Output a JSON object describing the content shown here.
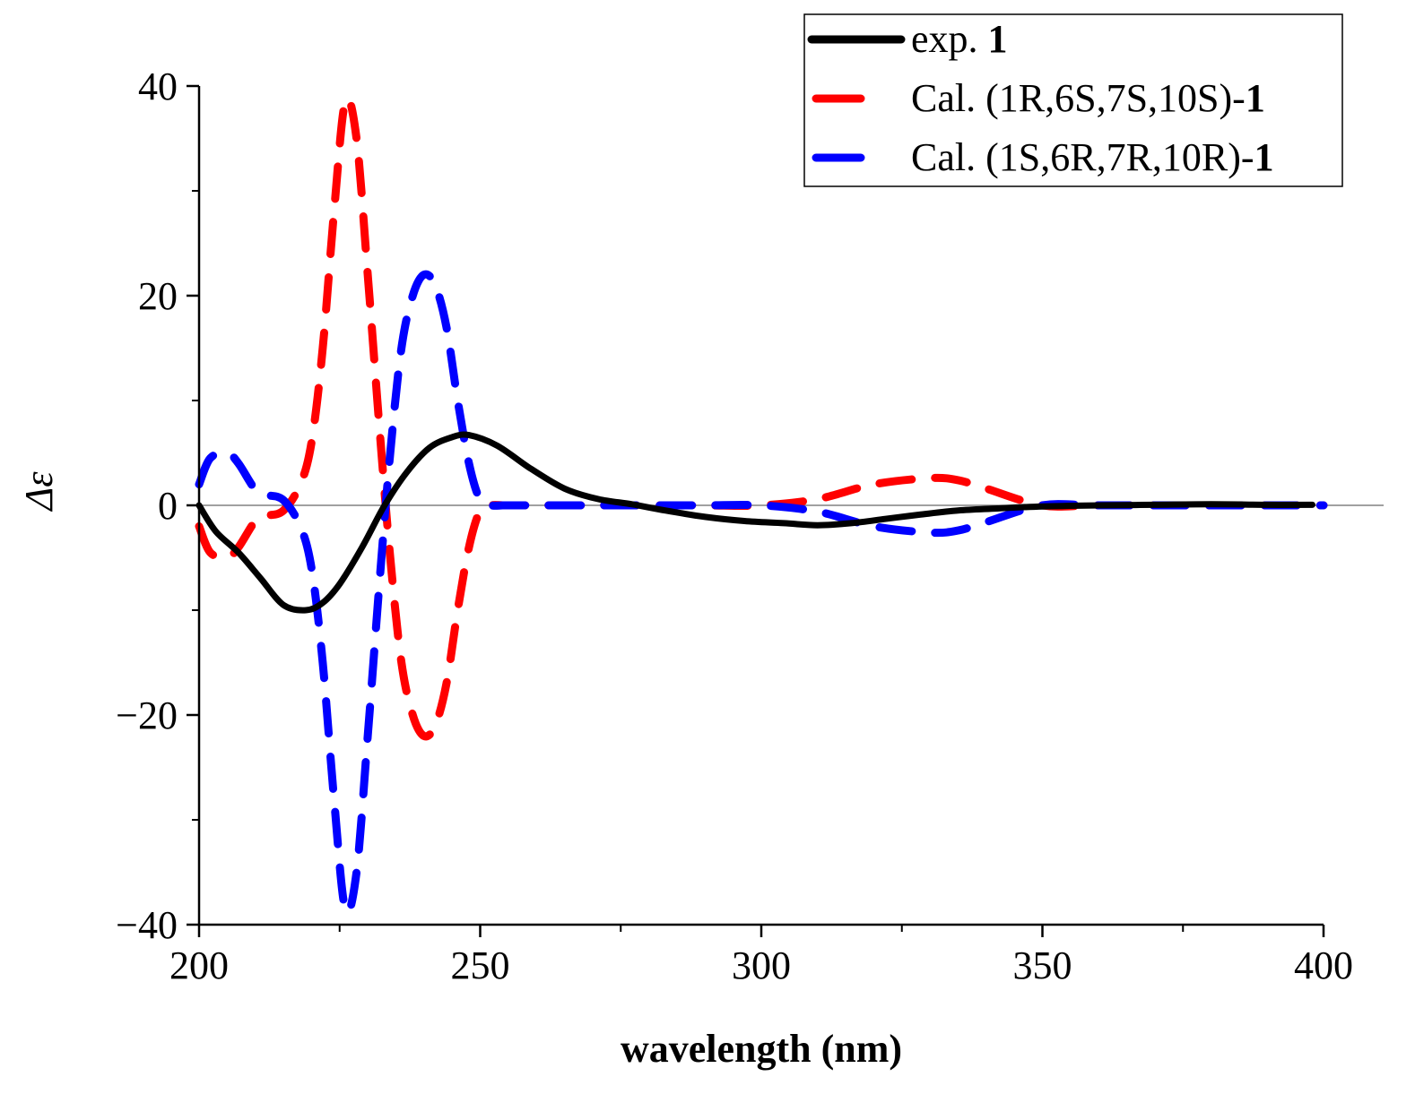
{
  "chart_data": {
    "type": "line",
    "title": "",
    "xlabel": "wavelength (nm)",
    "ylabel": "Δε",
    "xlim": [
      200,
      400
    ],
    "ylim": [
      -40,
      40
    ],
    "x_ticks": [
      200,
      250,
      300,
      350,
      400
    ],
    "x_tick_labels": [
      "200",
      "250",
      "300",
      "350",
      "400"
    ],
    "y_ticks": [
      -40,
      -20,
      0,
      20,
      40
    ],
    "y_tick_labels": [
      "−40",
      "−20",
      "0",
      "20",
      "40"
    ],
    "legend_position": "top-right",
    "series": [
      {
        "name": "exp. 1",
        "label_prefix": "exp. ",
        "label_bold": "1",
        "color": "#000000",
        "style": "solid",
        "x": [
          200,
          203,
          207,
          211,
          215,
          219,
          222,
          225,
          229,
          233,
          237,
          241,
          245,
          248,
          253,
          259,
          265,
          271,
          277,
          283,
          290,
          297,
          304,
          310,
          316,
          322,
          328,
          335,
          342,
          350,
          360,
          370,
          380,
          390,
          398
        ],
        "y": [
          0,
          -2.5,
          -4.5,
          -7,
          -9.5,
          -10,
          -9.3,
          -7.5,
          -4,
          0,
          3.2,
          5.5,
          6.5,
          6.7,
          5.7,
          3.5,
          1.6,
          0.6,
          0.1,
          -0.5,
          -1.1,
          -1.5,
          -1.7,
          -1.9,
          -1.7,
          -1.3,
          -0.9,
          -0.5,
          -0.3,
          -0.1,
          0,
          0.05,
          0.1,
          0.05,
          0.05
        ]
      },
      {
        "name": "Cal. (1R,6S,7S,10S)-1",
        "label_prefix": "Cal. (1R,6S,7S,10S)-",
        "label_bold": "1",
        "color": "#ff0000",
        "style": "dashed",
        "x": [
          200,
          202,
          205,
          207,
          210,
          212,
          215,
          218,
          220,
          222,
          224,
          226,
          228,
          230,
          232,
          234,
          236,
          238,
          240,
          242,
          244,
          246,
          248,
          250,
          252,
          254,
          256,
          260,
          270,
          280,
          290,
          300,
          310,
          320,
          330,
          335,
          340,
          350,
          360,
          380,
          400
        ],
        "y": [
          -2,
          -4.5,
          -5,
          -4,
          -1.5,
          -1,
          -0.5,
          2,
          6,
          15,
          28,
          38.5,
          35,
          22,
          8,
          -5,
          -15,
          -20,
          -22,
          -21,
          -17,
          -10,
          -4,
          -0.5,
          0,
          0,
          0,
          0,
          0,
          0,
          0,
          0,
          0.6,
          2,
          2.6,
          2.4,
          1.6,
          0,
          0,
          0,
          0
        ]
      },
      {
        "name": "Cal. (1S,6R,7R,10R)-1",
        "label_prefix": "Cal. (1S,6R,7R,10R)-",
        "label_bold": "1",
        "color": "#0000ff",
        "style": "dashed",
        "x": [
          200,
          202,
          205,
          207,
          210,
          212,
          215,
          218,
          220,
          222,
          224,
          226,
          228,
          230,
          232,
          234,
          236,
          238,
          240,
          242,
          244,
          246,
          248,
          250,
          252,
          254,
          256,
          260,
          270,
          280,
          290,
          300,
          310,
          320,
          330,
          335,
          340,
          350,
          360,
          380,
          400
        ],
        "y": [
          2,
          4.5,
          5,
          4,
          1.5,
          1,
          0.5,
          -2,
          -6,
          -15,
          -28,
          -38.5,
          -35,
          -22,
          -8,
          5,
          15,
          20,
          22,
          21,
          17,
          10,
          4,
          0.5,
          0,
          0,
          0,
          0,
          0,
          0,
          0,
          0,
          -0.6,
          -2,
          -2.6,
          -2.4,
          -1.6,
          0,
          0,
          0,
          0
        ]
      }
    ],
    "zero_line": true
  }
}
